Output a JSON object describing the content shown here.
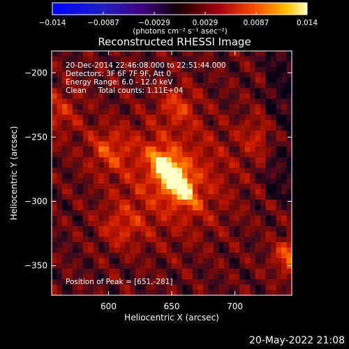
{
  "chart_data": {
    "type": "heatmap",
    "title": "Reconstructed RHESSI Image",
    "xlabel": "Heliocentric X (arcsec)",
    "ylabel": "Heliocentric Y (arcsec)",
    "xlim": [
      555,
      745
    ],
    "ylim": [
      -373,
      -183
    ],
    "xticks": [
      "600",
      "650",
      "700"
    ],
    "yticks": [
      "-200",
      "-250",
      "-300",
      "-350"
    ],
    "peak": {
      "x": 651,
      "y": -281
    },
    "colorbar": {
      "range": [
        -0.014,
        0.014
      ],
      "ticks": [
        "−0.014",
        "−0.0087",
        "−0.0029",
        "0.0029",
        "0.0087",
        "0.014"
      ],
      "unit": "(photons cm⁻² s⁻¹ asec⁻²)"
    },
    "annotations": {
      "time_range": "20-Dec-2014 22:46:08.000 to 22:51:44.000",
      "detectors": "Detectors: 3F 6F 7F 9F, Att 0",
      "energy_range": "Energy Range: 6.0 - 12.0 keV",
      "method": "Clean     Total counts: 1.11E+04",
      "peak_text": "Position of Peak = [651,-281]"
    }
  },
  "footer": {
    "timestamp": "20-May-2022 21:08"
  }
}
